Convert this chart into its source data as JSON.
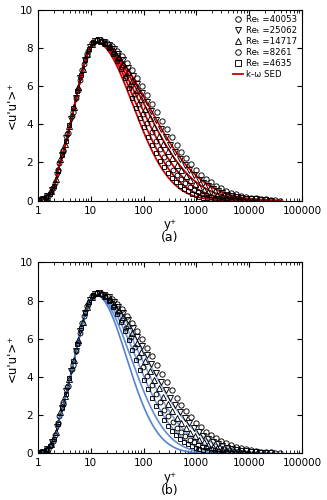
{
  "Re_tau_values": [
    40053,
    25062,
    14717,
    8261,
    4635
  ],
  "symbols": [
    "o",
    "v",
    "^",
    "o",
    "s"
  ],
  "ms_list": [
    3.8,
    3.8,
    3.8,
    3.5,
    3.5
  ],
  "legend_labels_re": [
    "Reₜ =40053",
    "Reₜ =25062",
    "Reₜ =14717",
    "Reₜ =8261",
    "Reₜ =4635"
  ],
  "line_color_a": "#cc0000",
  "line_color_b": "#4477cc",
  "ylabel": "<u'u'>⁺",
  "xlabel": "y⁺",
  "label_a": "(a)",
  "label_b": "(b)",
  "legend_line_label_a": "k-ω SED",
  "ylim": [
    0,
    10
  ],
  "xlim": [
    1,
    100000
  ],
  "background": "#ffffff",
  "peak_amplitude": 8.4,
  "peak_yplus": 13.0,
  "sigma_rise": 0.42,
  "sigma_decay_base_a": 0.72,
  "sigma_decay_base_b": 0.62,
  "sigma_decay_exp_a": 0.17,
  "sigma_decay_exp_b": 0.24,
  "model_amplitude": 8.3,
  "model_peak_yplus": 12.5,
  "model_sigma_rise": 0.4,
  "model_sigma_decay_base_a": 0.7,
  "model_sigma_decay_base_b": 0.58,
  "model_sigma_decay_exp_a": 0.16,
  "model_sigma_decay_exp_b": 0.23,
  "n_scatter_pts": 50,
  "n_model_pts": 400,
  "Re_ref": 4635
}
